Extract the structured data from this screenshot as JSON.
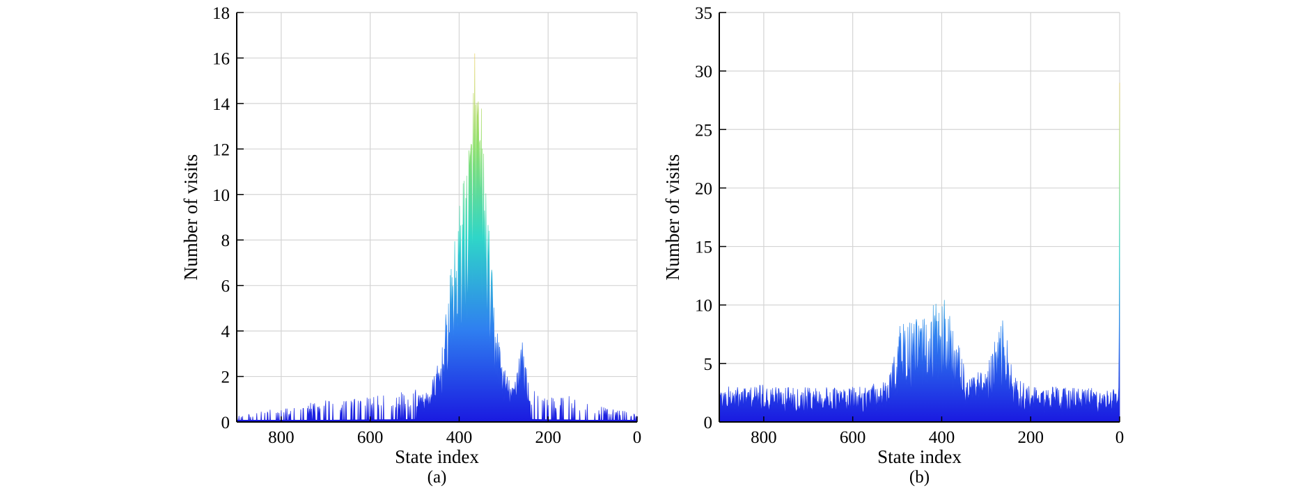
{
  "chart_data": [
    {
      "type": "area",
      "caption": "(a)",
      "xlabel": "State index",
      "ylabel": "Number of visits",
      "xlim": [
        900,
        0
      ],
      "ylim": [
        0,
        18
      ],
      "x_reversed": true,
      "xticks": [
        800,
        600,
        400,
        200,
        0
      ],
      "xtick_labels": [
        "800",
        "600",
        "400",
        "200",
        "0"
      ],
      "yticks": [
        0,
        2,
        4,
        6,
        8,
        10,
        12,
        14,
        16,
        18
      ],
      "ytick_labels": [
        "0",
        "2",
        "4",
        "6",
        "8",
        "10",
        "12",
        "14",
        "16",
        "18"
      ],
      "grid": true,
      "colormap": [
        "#1a1ae0",
        "#2f7ff0",
        "#2fd6c8",
        "#8ee06a",
        "#e8d060"
      ],
      "profile_points": [
        [
          900,
          0.3
        ],
        [
          800,
          0.5
        ],
        [
          700,
          0.8
        ],
        [
          600,
          1.0
        ],
        [
          520,
          1.1
        ],
        [
          470,
          1.3
        ],
        [
          440,
          3.0
        ],
        [
          420,
          6.5
        ],
        [
          400,
          9.5
        ],
        [
          380,
          12.5
        ],
        [
          365,
          16.2
        ],
        [
          350,
          14.0
        ],
        [
          335,
          9.0
        ],
        [
          320,
          5.0
        ],
        [
          300,
          2.5
        ],
        [
          280,
          1.5
        ],
        [
          260,
          4.0
        ],
        [
          240,
          1.2
        ],
        [
          200,
          1.0
        ],
        [
          150,
          1.0
        ],
        [
          100,
          0.6
        ],
        [
          50,
          0.5
        ],
        [
          0,
          0.3
        ]
      ],
      "peak": {
        "x": 365,
        "y": 16.2
      }
    },
    {
      "type": "area",
      "caption": "(b)",
      "xlabel": "State index",
      "ylabel": "Number of visits",
      "xlim": [
        900,
        0
      ],
      "ylim": [
        0,
        35
      ],
      "x_reversed": true,
      "xticks": [
        800,
        600,
        400,
        200,
        0
      ],
      "xtick_labels": [
        "800",
        "600",
        "400",
        "200",
        "0"
      ],
      "yticks": [
        0,
        5,
        10,
        15,
        20,
        25,
        30,
        35
      ],
      "ytick_labels": [
        "0",
        "5",
        "10",
        "15",
        "20",
        "25",
        "30",
        "35"
      ],
      "grid": true,
      "colormap": [
        "#1a1ae0",
        "#2f7ff0",
        "#2fd6c8",
        "#8ee06a",
        "#e8d060"
      ],
      "profile_points": [
        [
          900,
          3.0
        ],
        [
          800,
          3.2
        ],
        [
          700,
          3.0
        ],
        [
          600,
          3.0
        ],
        [
          520,
          3.5
        ],
        [
          495,
          9.0
        ],
        [
          470,
          8.5
        ],
        [
          440,
          9.5
        ],
        [
          420,
          10.0
        ],
        [
          400,
          11.3
        ],
        [
          385,
          10.3
        ],
        [
          365,
          7.0
        ],
        [
          340,
          4.0
        ],
        [
          300,
          4.5
        ],
        [
          262,
          9.3
        ],
        [
          240,
          4.0
        ],
        [
          200,
          3.0
        ],
        [
          100,
          3.0
        ],
        [
          20,
          2.8
        ],
        [
          2,
          3.0
        ],
        [
          0,
          29.0
        ]
      ],
      "peak": {
        "x": 0,
        "y": 29.0
      }
    }
  ]
}
